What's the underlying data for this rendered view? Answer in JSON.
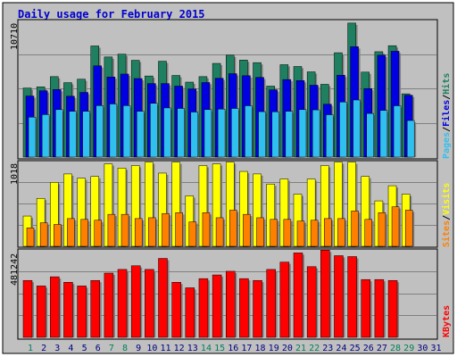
{
  "title": "Daily usage for February 2015",
  "colors": {
    "frame_bg": "#c0c0c0",
    "page_bg": "#ffffff",
    "title": "#0000cc",
    "hits": "#1e8060",
    "files": "#0000e0",
    "pages": "#30c0f0",
    "visits": "#ffff00",
    "sites": "#ff8000",
    "kbytes": "#ff0000",
    "weekend": "#00805a",
    "weekday": "#000080",
    "grid": "#808080"
  },
  "chart_data": [
    {
      "type": "bar",
      "panel": "top",
      "max_label": "10710",
      "ylim": [
        0,
        10710
      ],
      "categories": [
        "1",
        "2",
        "3",
        "4",
        "5",
        "6",
        "7",
        "8",
        "9",
        "10",
        "11",
        "12",
        "13",
        "14",
        "15",
        "16",
        "17",
        "18",
        "19",
        "20",
        "21",
        "22",
        "23",
        "24",
        "25",
        "26",
        "27",
        "28",
        "29",
        "30",
        "31"
      ],
      "series": [
        {
          "name": "Hits",
          "values": [
            5380,
            5470,
            6270,
            5800,
            6070,
            8660,
            7800,
            8020,
            7540,
            6320,
            7470,
            6360,
            5840,
            6270,
            7300,
            7940,
            7560,
            7360,
            5530,
            7200,
            7060,
            6640,
            5670,
            8130,
            10440,
            6620,
            8210,
            8680,
            4930,
            null,
            null
          ]
        },
        {
          "name": "Files",
          "values": [
            4760,
            5170,
            5260,
            4740,
            5040,
            7110,
            6240,
            6470,
            6120,
            5730,
            5730,
            5530,
            5310,
            5810,
            6140,
            6500,
            6340,
            6210,
            5240,
            6040,
            5960,
            5600,
            4120,
            6380,
            8600,
            5340,
            7940,
            8250,
            4820,
            null,
            null
          ]
        },
        {
          "name": "Pages",
          "values": [
            3110,
            3310,
            3700,
            3570,
            3570,
            4010,
            4140,
            4010,
            3570,
            4190,
            3830,
            3790,
            3510,
            3700,
            3740,
            3790,
            4000,
            3540,
            3530,
            3570,
            3700,
            3680,
            3300,
            4290,
            4450,
            3400,
            3640,
            4000,
            2850,
            null,
            null
          ]
        }
      ],
      "legend_segments": [
        "Pages",
        "/",
        "Files",
        "/",
        "Hits"
      ]
    },
    {
      "type": "bar",
      "panel": "middle",
      "max_label": "1018",
      "ylim": [
        0,
        1018
      ],
      "categories": [
        "1",
        "2",
        "3",
        "4",
        "5",
        "6",
        "7",
        "8",
        "9",
        "10",
        "11",
        "12",
        "13",
        "14",
        "15",
        "16",
        "17",
        "18",
        "19",
        "20",
        "21",
        "22",
        "23",
        "24",
        "25",
        "26",
        "27",
        "28",
        "29",
        "30",
        "31"
      ],
      "series": [
        {
          "name": "Visits",
          "values": [
            360,
            570,
            760,
            860,
            810,
            830,
            980,
            930,
            960,
            1000,
            870,
            1000,
            600,
            960,
            980,
            1000,
            890,
            860,
            740,
            800,
            620,
            800,
            960,
            1000,
            1000,
            830,
            540,
            720,
            620,
            null,
            null
          ]
        },
        {
          "name": "Sites",
          "values": [
            220,
            280,
            260,
            330,
            320,
            310,
            380,
            380,
            330,
            340,
            390,
            400,
            290,
            400,
            340,
            430,
            380,
            340,
            320,
            320,
            300,
            310,
            330,
            330,
            420,
            320,
            400,
            470,
            430,
            null,
            null
          ]
        }
      ],
      "legend_segments": [
        "Sites",
        "/",
        "Visits"
      ]
    },
    {
      "type": "bar",
      "panel": "bottom",
      "max_label": "481242",
      "ylim": [
        0,
        481242
      ],
      "categories": [
        "1",
        "2",
        "3",
        "4",
        "5",
        "6",
        "7",
        "8",
        "9",
        "10",
        "11",
        "12",
        "13",
        "14",
        "15",
        "16",
        "17",
        "18",
        "19",
        "20",
        "21",
        "22",
        "23",
        "24",
        "25",
        "26",
        "27",
        "28",
        "29",
        "30",
        "31"
      ],
      "series": [
        {
          "name": "KBytes",
          "values": [
            310000,
            280000,
            330000,
            300000,
            280000,
            310000,
            350000,
            370000,
            390000,
            370000,
            430000,
            300000,
            270000,
            320000,
            340000,
            360000,
            320000,
            310000,
            370000,
            410000,
            460000,
            385000,
            475000,
            445000,
            440000,
            315000,
            315000,
            310000,
            null,
            null,
            null
          ]
        }
      ],
      "legend_segments": [
        "KBytes"
      ]
    }
  ],
  "day_labels": [
    "1",
    "2",
    "3",
    "4",
    "5",
    "6",
    "7",
    "8",
    "9",
    "10",
    "11",
    "12",
    "13",
    "14",
    "15",
    "16",
    "17",
    "18",
    "19",
    "20",
    "21",
    "22",
    "23",
    "24",
    "25",
    "26",
    "27",
    "28",
    "29",
    "30",
    "31"
  ],
  "weekend_days": [
    1,
    7,
    8,
    14,
    15,
    21,
    22,
    28,
    29
  ]
}
